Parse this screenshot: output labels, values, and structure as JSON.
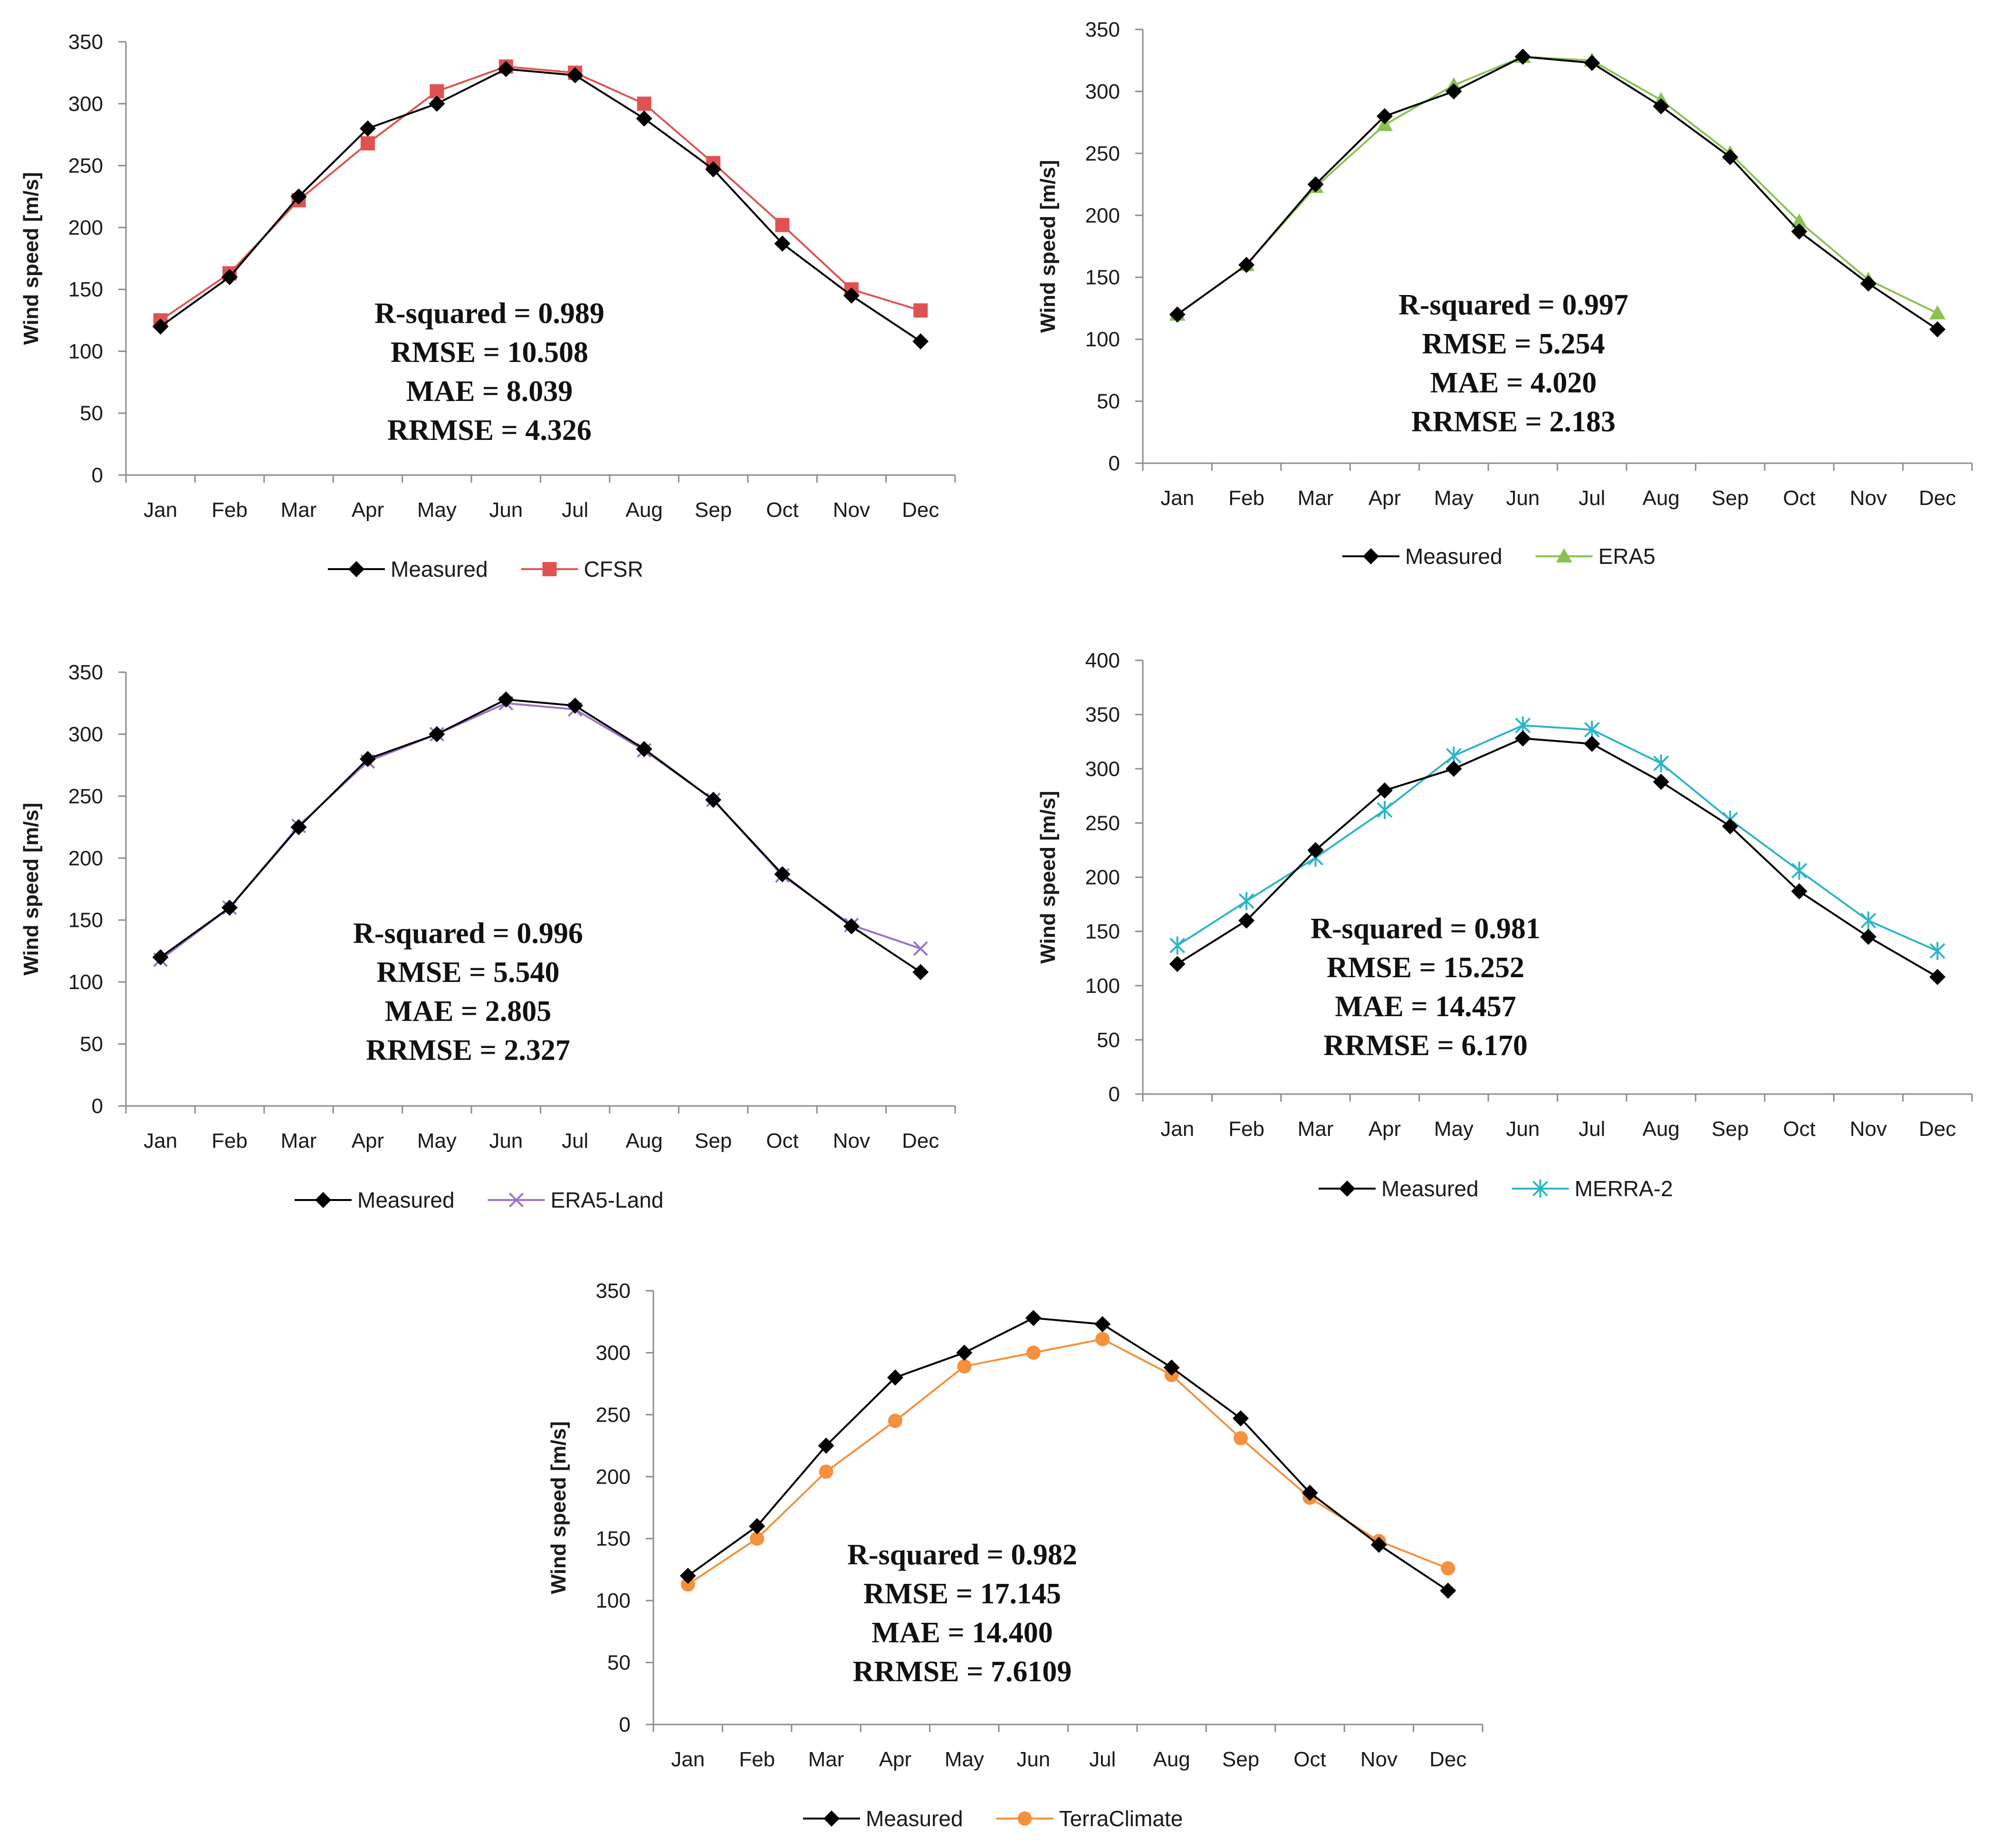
{
  "figure": {
    "measured_color": "#000000",
    "chart_data": [
      {
        "type": "line",
        "categories": [
          "Jan",
          "Feb",
          "Mar",
          "Apr",
          "May",
          "Jun",
          "Jul",
          "Aug",
          "Sep",
          "Oct",
          "Nov",
          "Dec"
        ],
        "ylabel": "Wind speed [m/s]",
        "ylim": [
          0,
          350
        ],
        "yticks": [
          0,
          50,
          100,
          150,
          200,
          250,
          300,
          350
        ],
        "grid": false,
        "legend_position": "bottom",
        "series": [
          {
            "name": "Measured",
            "marker": "diamond",
            "color": "#000000",
            "values": [
              120,
              160,
              225,
              280,
              300,
              328,
              323,
              288,
              247,
              187,
              145,
              108
            ]
          },
          {
            "name": "CFSR",
            "marker": "square",
            "color": "#e05252",
            "values": [
              125,
              163,
              222,
              268,
              310,
              330,
              325,
              300,
              252,
              202,
              150,
              133
            ]
          }
        ],
        "stats": [
          "R-squared = 0.989",
          "RMSE = 10.508",
          "MAE = 8.039",
          "RRMSE = 4.326"
        ]
      },
      {
        "type": "line",
        "categories": [
          "Jan",
          "Feb",
          "Mar",
          "Apr",
          "May",
          "Jun",
          "Jul",
          "Aug",
          "Sep",
          "Oct",
          "Nov",
          "Dec"
        ],
        "ylabel": "Wind speed [m/s]",
        "ylim": [
          0,
          350
        ],
        "yticks": [
          0,
          50,
          100,
          150,
          200,
          250,
          300,
          350
        ],
        "grid": false,
        "legend_position": "bottom",
        "series": [
          {
            "name": "Measured",
            "marker": "diamond",
            "color": "#000000",
            "values": [
              120,
              160,
              225,
              280,
              300,
              328,
              323,
              288,
              247,
              187,
              145,
              108
            ]
          },
          {
            "name": "ERA5",
            "marker": "triangle",
            "color": "#8cc152",
            "values": [
              120,
              160,
              223,
              273,
              305,
              328,
              325,
              293,
              250,
              195,
              148,
              121
            ]
          }
        ],
        "stats": [
          "R-squared = 0.997",
          "RMSE = 5.254",
          "MAE = 4.020",
          "RRMSE = 2.183"
        ]
      },
      {
        "type": "line",
        "categories": [
          "Jan",
          "Feb",
          "Mar",
          "Apr",
          "May",
          "Jun",
          "Jul",
          "Aug",
          "Sep",
          "Oct",
          "Nov",
          "Dec"
        ],
        "ylabel": "Wind speed [m/s]",
        "ylim": [
          0,
          350
        ],
        "yticks": [
          0,
          50,
          100,
          150,
          200,
          250,
          300,
          350
        ],
        "grid": false,
        "legend_position": "bottom",
        "series": [
          {
            "name": "Measured",
            "marker": "diamond",
            "color": "#000000",
            "values": [
              120,
              160,
              225,
              280,
              300,
              328,
              323,
              288,
              247,
              187,
              145,
              108
            ]
          },
          {
            "name": "ERA5-Land",
            "marker": "x",
            "color": "#9a70c9",
            "values": [
              118,
              160,
              226,
              278,
              300,
              325,
              320,
              287,
              247,
              186,
              146,
              127
            ]
          }
        ],
        "stats": [
          "R-squared = 0.996",
          "RMSE = 5.540",
          "MAE = 2.805",
          "RRMSE = 2.327"
        ]
      },
      {
        "type": "line",
        "categories": [
          "Jan",
          "Feb",
          "Mar",
          "Apr",
          "May",
          "Jun",
          "Jul",
          "Aug",
          "Sep",
          "Oct",
          "Nov",
          "Dec"
        ],
        "ylabel": "Wind speed [m/s]",
        "ylim": [
          0,
          400
        ],
        "yticks": [
          0,
          50,
          100,
          150,
          200,
          250,
          300,
          350,
          400
        ],
        "grid": false,
        "legend_position": "bottom",
        "series": [
          {
            "name": "Measured",
            "marker": "diamond",
            "color": "#000000",
            "values": [
              120,
              160,
              225,
              280,
              300,
              328,
              323,
              288,
              247,
              187,
              145,
              108
            ]
          },
          {
            "name": "MERRA-2",
            "marker": "star",
            "color": "#2cb5c8",
            "values": [
              137,
              178,
              218,
              262,
              312,
              340,
              336,
              305,
              253,
              206,
              160,
              132
            ]
          }
        ],
        "stats": [
          "R-squared = 0.981",
          "RMSE = 15.252",
          "MAE = 14.457",
          "RRMSE = 6.170"
        ]
      },
      {
        "type": "line",
        "categories": [
          "Jan",
          "Feb",
          "Mar",
          "Apr",
          "May",
          "Jun",
          "Jul",
          "Aug",
          "Sep",
          "Oct",
          "Nov",
          "Dec"
        ],
        "ylabel": "Wind speed [m/s]",
        "ylim": [
          0,
          350
        ],
        "yticks": [
          0,
          50,
          100,
          150,
          200,
          250,
          300,
          350
        ],
        "grid": false,
        "legend_position": "bottom",
        "series": [
          {
            "name": "Measured",
            "marker": "diamond",
            "color": "#000000",
            "values": [
              120,
              160,
              225,
              280,
              300,
              328,
              323,
              288,
              247,
              187,
              145,
              108
            ]
          },
          {
            "name": "TerraClimate",
            "marker": "circle",
            "color": "#f5903d",
            "values": [
              113,
              150,
              204,
              245,
              289,
              300,
              311,
              282,
              231,
              183,
              148,
              126
            ]
          }
        ],
        "stats": [
          "R-squared = 0.982",
          "RMSE = 17.145",
          "MAE = 14.400",
          "RRMSE = 7.6109"
        ]
      }
    ]
  }
}
